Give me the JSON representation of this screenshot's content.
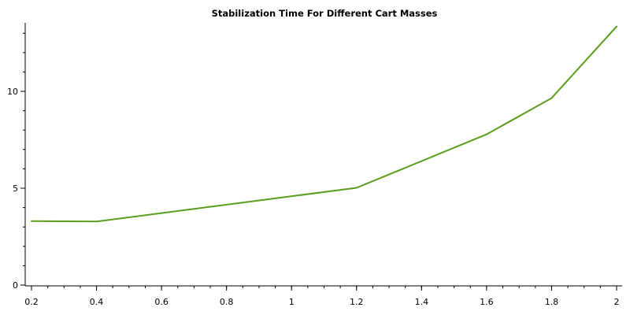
{
  "chart_data": {
    "type": "line",
    "title": "Stabilization Time For Different Cart Masses",
    "xlabel": "",
    "ylabel": "",
    "xlim": [
      0.2,
      2
    ],
    "ylim": [
      0,
      13.5
    ],
    "x_ticks": [
      0.2,
      0.4,
      0.6,
      0.8,
      1,
      1.2,
      1.4,
      1.6,
      1.8,
      2
    ],
    "x_minor_step": 0.05,
    "y_ticks": [
      0,
      5,
      10
    ],
    "y_minor_step": 1,
    "grid": false,
    "series": [
      {
        "color": "#5a9e1c",
        "x": [
          0.2,
          0.4,
          1.2,
          1.6,
          1.8,
          2.0
        ],
        "y": [
          3.3,
          3.28,
          5.02,
          7.78,
          9.65,
          13.35
        ]
      }
    ]
  }
}
